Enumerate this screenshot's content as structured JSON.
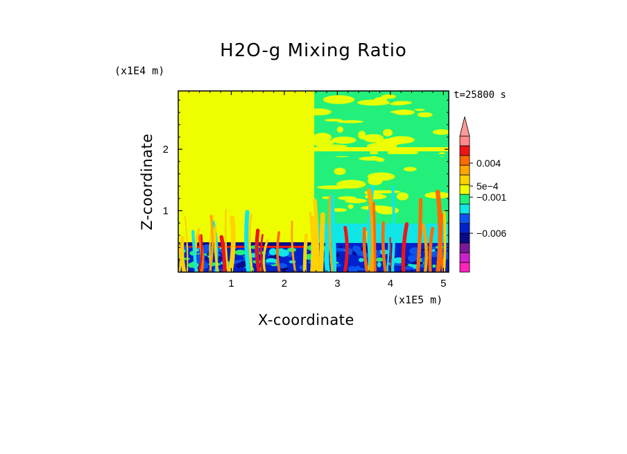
{
  "chart_data": {
    "type": "heatmap",
    "title": "H2O-g Mixing Ratio",
    "xlabel": "X-coordinate",
    "ylabel": "Z-coordinate",
    "x_unit": "(x1E5 m)",
    "y_unit": "(x1E4 m)",
    "time_label": "t=25800 s",
    "xlim": [
      0,
      5.1
    ],
    "ylim": [
      0,
      2.95
    ],
    "x_ticks": [
      1,
      2,
      3,
      4,
      5
    ],
    "y_ticks": [
      1,
      2
    ],
    "colorbar": {
      "labels": [
        {
          "text": "0.004",
          "level": 0.004
        },
        {
          "text": "5e-4",
          "level": 0.0005
        },
        {
          "text": "-0.001",
          "level": -0.001
        },
        {
          "text": "-0.006",
          "level": -0.006
        }
      ],
      "colors": [
        "#ff22bb",
        "#cc22cc",
        "#7a1a9a",
        "#0a0a8a",
        "#0022cc",
        "#0a55f0",
        "#11e6e6",
        "#22f07a",
        "#eefe00",
        "#ffd200",
        "#ffa500",
        "#ff6a00",
        "#ee1515",
        "#ff8a8a",
        "#ff9999"
      ]
    },
    "colors": {
      "background_field": "#eefe00",
      "upper_right_field": "#22f07a"
    }
  }
}
